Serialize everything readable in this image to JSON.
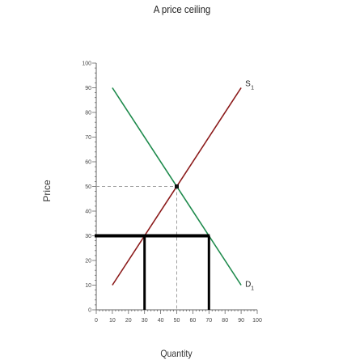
{
  "chart_data": {
    "type": "line",
    "title": "A price ceiling",
    "xlabel": "Quantity",
    "ylabel": "Price",
    "xlim": [
      0,
      100
    ],
    "ylim": [
      0,
      100
    ],
    "xticks": [
      0,
      10,
      20,
      30,
      40,
      50,
      60,
      70,
      80,
      90,
      100
    ],
    "yticks": [
      0,
      10,
      20,
      30,
      40,
      50,
      60,
      70,
      80,
      90,
      100
    ],
    "grid": false,
    "legend": "none",
    "series": [
      {
        "name": "S1",
        "label": "S",
        "label_sub": "1",
        "color": "#8b1a1a",
        "x": [
          10,
          90
        ],
        "y": [
          10,
          90
        ]
      },
      {
        "name": "D1",
        "label": "D",
        "label_sub": "1",
        "color": "#1e8a4c",
        "x": [
          10,
          90
        ],
        "y": [
          90,
          10
        ]
      }
    ],
    "equilibrium": {
      "x": 50,
      "y": 50,
      "color": "#111111"
    },
    "ceiling": {
      "price": 30,
      "quantity_supplied": 30,
      "quantity_demanded": 70,
      "color": "#000000"
    },
    "guide_color": "#a0a0a0"
  }
}
